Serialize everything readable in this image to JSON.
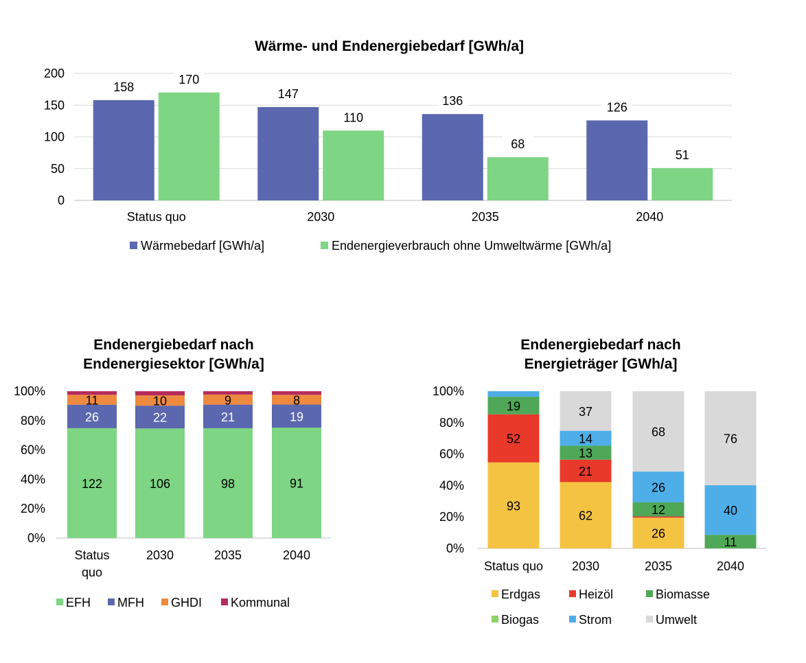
{
  "colors": {
    "waerme": "#5B67AE",
    "endenergie": "#7ED584",
    "efh": "#7ED584",
    "mfh": "#5B67AE",
    "ghdi": "#ED8A3F",
    "kommunal": "#B62C5C",
    "erdgas": "#F5C342",
    "heizoel": "#E8392A",
    "biomasse": "#4FA857",
    "biogas": "#8FD16A",
    "strom": "#4EAEE8",
    "umwelt": "#D9D9D9",
    "grid": "#D9D9D9"
  },
  "chart_data": [
    {
      "type": "bar",
      "title": "Wärme- und Endenergiebedarf [GWh/a]",
      "categories": [
        "Status quo",
        "2030",
        "2035",
        "2040"
      ],
      "series": [
        {
          "name": "Wärmebedarf [GWh/a]",
          "values": [
            158,
            147,
            136,
            126
          ],
          "color_key": "waerme"
        },
        {
          "name": "Endenergieverbrauch ohne Umweltwärme [GWh/a]",
          "values": [
            170,
            110,
            68,
            51
          ],
          "color_key": "endenergie"
        }
      ],
      "ylim": [
        0,
        200
      ],
      "yticks": [
        "0",
        "50",
        "100",
        "150",
        "200"
      ],
      "grid": true,
      "legend": "bottom"
    },
    {
      "type": "bar",
      "stacked": "percent",
      "title": [
        "Endenergiebedarf nach",
        "Endenergiesektor [GWh/a]"
      ],
      "categories": [
        [
          "Status",
          "quo"
        ],
        [
          "2030"
        ],
        [
          "2035"
        ],
        [
          "2040"
        ]
      ],
      "series": [
        {
          "name": "EFH",
          "values": [
            122,
            106,
            98,
            91
          ],
          "color_key": "efh"
        },
        {
          "name": "MFH",
          "values": [
            26,
            22,
            21,
            19
          ],
          "color_key": "mfh"
        },
        {
          "name": "GHDI",
          "values": [
            11,
            10,
            9,
            8
          ],
          "color_key": "ghdi"
        },
        {
          "name": "Kommunal",
          "values": [
            4,
            4,
            3,
            3
          ],
          "color_key": "kommunal",
          "show_labels": false
        }
      ],
      "yticks": [
        "0%",
        "20%",
        "40%",
        "60%",
        "80%",
        "100%"
      ],
      "grid": false,
      "legend": "bottom"
    },
    {
      "type": "bar",
      "stacked": "percent",
      "title": [
        "Endenergiebedarf nach",
        "Energieträger [GWh/a]"
      ],
      "categories": [
        [
          "Status quo"
        ],
        [
          "2030"
        ],
        [
          "2035"
        ],
        [
          "2040"
        ]
      ],
      "series": [
        {
          "name": "Erdgas",
          "values": [
            93,
            62,
            26,
            0
          ],
          "color_key": "erdgas"
        },
        {
          "name": "Heizöl",
          "values": [
            52,
            21,
            1,
            0
          ],
          "color_key": "heizoel",
          "hide_below": 5
        },
        {
          "name": "Biomasse",
          "values": [
            19,
            13,
            12,
            11
          ],
          "color_key": "biomasse"
        },
        {
          "name": "Biogas",
          "values": [
            0,
            0,
            0,
            0
          ],
          "color_key": "biogas"
        },
        {
          "name": "Strom",
          "values": [
            6,
            14,
            26,
            40
          ],
          "color_key": "strom",
          "hide_below": 10
        },
        {
          "name": "Umwelt",
          "values": [
            0,
            37,
            68,
            76
          ],
          "color_key": "umwelt"
        }
      ],
      "yticks": [
        "0%",
        "20%",
        "40%",
        "60%",
        "80%",
        "100%"
      ],
      "grid": false,
      "legend": "bottom"
    }
  ]
}
